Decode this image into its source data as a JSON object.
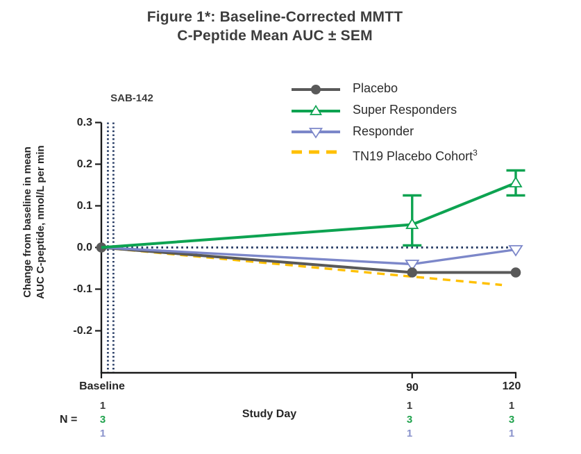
{
  "title": {
    "line1": "Figure 1*: Baseline-Corrected MMTT",
    "line2": "C-Peptide Mean AUC ± SEM"
  },
  "annotations": {
    "sab_label": "SAB-142"
  },
  "axes": {
    "y_title_line1": "Change from baseline in mean",
    "y_title_line2": "AUC C-peptide, nmol/L per min",
    "y_tick_labels": [
      "0.3",
      "0.2",
      "0.1",
      "0.0",
      "-0.1",
      "-0.2"
    ],
    "x_tick_labels": [
      "Baseline",
      "90",
      "120"
    ],
    "x_title": "Study Day"
  },
  "legend": {
    "items": [
      {
        "label": "Placebo",
        "color": "#595959",
        "marker": "circle-filled",
        "line": "solid"
      },
      {
        "label": "Super Responders",
        "color": "#0DA351",
        "marker": "triangle-up-open",
        "line": "solid"
      },
      {
        "label": "Responder",
        "color": "#7C87C9",
        "marker": "triangle-down-open",
        "line": "solid"
      },
      {
        "label": "TN19 Placebo Cohort",
        "superscript": "3",
        "color": "#FFC000",
        "marker": "none",
        "line": "dashed"
      }
    ]
  },
  "n_table": {
    "label": "N =",
    "row_colors": [
      "#3A3A3A",
      "#1FA24C",
      "#8A93CC"
    ],
    "row_series": [
      "Placebo",
      "Super Responders",
      "Responder"
    ],
    "columns": [
      {
        "x": "Baseline",
        "values": [
          "1",
          "3",
          "1"
        ]
      },
      {
        "x": "90",
        "values": [
          "1",
          "3",
          "1"
        ]
      },
      {
        "x": "120",
        "values": [
          "1",
          "3",
          "1"
        ]
      }
    ]
  },
  "chart_data": {
    "type": "line",
    "title": "Figure 1*: Baseline-Corrected MMTT C-Peptide Mean AUC ± SEM",
    "xlabel": "Study Day",
    "ylabel": "Change from baseline in mean AUC C-peptide, nmol/L per min",
    "x_days": [
      0,
      90,
      120
    ],
    "x_tick_labels": [
      "Baseline",
      "90",
      "120"
    ],
    "ylim": [
      -0.3,
      0.3
    ],
    "yticks": [
      0.3,
      0.2,
      0.1,
      0,
      -0.1,
      -0.2
    ],
    "grid": false,
    "legend_position": "top-right",
    "reference_lines": {
      "horizontal": {
        "y": 0,
        "style": "dotted",
        "color": "#253A63"
      },
      "vertical_band_days": [
        1.9,
        3.5
      ],
      "vertical_style": "dotted",
      "vertical_color": "#253A63",
      "vertical_label": "SAB-142"
    },
    "series": [
      {
        "name": "Placebo",
        "color": "#595959",
        "marker": "circle-filled",
        "line": "solid",
        "points": [
          [
            0,
            0.0
          ],
          [
            90,
            -0.06
          ],
          [
            120,
            -0.06
          ]
        ]
      },
      {
        "name": "Super Responders",
        "color": "#0DA351",
        "marker": "triangle-up-open",
        "line": "solid",
        "points": [
          [
            0,
            0.0
          ],
          [
            90,
            0.055
          ],
          [
            120,
            0.155
          ]
        ],
        "error_bars": [
          {
            "day": 90,
            "low": 0.005,
            "high": 0.125
          },
          {
            "day": 120,
            "low": 0.125,
            "high": 0.185
          }
        ]
      },
      {
        "name": "Responder",
        "color": "#7C87C9",
        "marker": "triangle-down-open",
        "line": "solid",
        "points": [
          [
            0,
            0.0
          ],
          [
            90,
            -0.04
          ],
          [
            120,
            -0.005
          ]
        ]
      },
      {
        "name": "TN19 Placebo Cohort",
        "color": "#FFC000",
        "marker": "none",
        "line": "dashed",
        "points": [
          [
            0,
            0.0
          ],
          [
            90,
            -0.07
          ],
          [
            116,
            -0.09
          ]
        ]
      }
    ],
    "n_per_point": {
      "Placebo": [
        1,
        1,
        1
      ],
      "Super Responders": [
        3,
        3,
        3
      ],
      "Responder": [
        1,
        1,
        1
      ]
    }
  }
}
